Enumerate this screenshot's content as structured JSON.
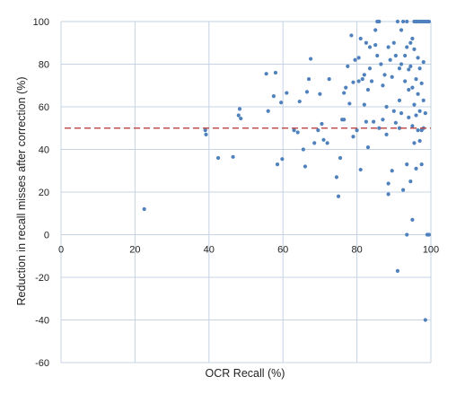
{
  "chart_data": {
    "type": "scatter",
    "title": "",
    "xlabel": "OCR Recall (%)",
    "ylabel": "Reduction in recall misses  after correction (%)",
    "xlim": [
      0,
      100
    ],
    "ylim": [
      -60,
      100
    ],
    "x_ticks": [
      0,
      20,
      40,
      60,
      80,
      100
    ],
    "y_ticks": [
      -60,
      -40,
      -20,
      0,
      20,
      40,
      60,
      80,
      100
    ],
    "grid": true,
    "legend": "none",
    "colors": {
      "points": "#4f81bd",
      "reference_line": "#c0504d",
      "grid": "#c5d3e3"
    },
    "reference_line": {
      "y": 50,
      "style": "dashed"
    },
    "series": [
      {
        "points": [
          [
            22.5,
            12
          ],
          [
            39,
            49
          ],
          [
            39.2,
            47
          ],
          [
            42.5,
            36
          ],
          [
            46.5,
            36.5
          ],
          [
            48,
            56
          ],
          [
            48.3,
            59
          ],
          [
            48.6,
            54.5
          ],
          [
            55.5,
            75.5
          ],
          [
            56,
            58
          ],
          [
            57.5,
            65
          ],
          [
            58,
            76
          ],
          [
            58.5,
            33
          ],
          [
            59.5,
            62
          ],
          [
            59.8,
            35.5
          ],
          [
            61,
            66.5
          ],
          [
            63,
            49
          ],
          [
            64,
            48
          ],
          [
            64.5,
            62.5
          ],
          [
            65.5,
            40
          ],
          [
            66,
            32
          ],
          [
            66.5,
            67
          ],
          [
            67,
            73
          ],
          [
            67.5,
            82.5
          ],
          [
            68.5,
            43
          ],
          [
            69.5,
            49
          ],
          [
            70,
            66
          ],
          [
            70.5,
            52
          ],
          [
            71,
            44.5
          ],
          [
            72,
            43
          ],
          [
            72.5,
            73
          ],
          [
            74.5,
            27
          ],
          [
            75,
            18
          ],
          [
            75.5,
            36
          ],
          [
            76,
            54
          ],
          [
            76.5,
            54
          ],
          [
            76.5,
            66.5
          ],
          [
            77,
            69
          ],
          [
            77.5,
            79
          ],
          [
            78,
            61.5
          ],
          [
            78.5,
            93.5
          ],
          [
            79,
            46
          ],
          [
            79,
            71.5
          ],
          [
            79.5,
            82
          ],
          [
            80,
            49
          ],
          [
            80.5,
            72
          ],
          [
            80.5,
            83
          ],
          [
            81,
            30.5
          ],
          [
            81,
            92
          ],
          [
            81.5,
            73
          ],
          [
            82,
            75
          ],
          [
            82,
            61
          ],
          [
            82.5,
            90
          ],
          [
            82.5,
            53
          ],
          [
            83,
            41
          ],
          [
            83,
            68
          ],
          [
            83.5,
            78
          ],
          [
            83.5,
            88
          ],
          [
            84,
            72
          ],
          [
            84.5,
            53
          ],
          [
            85,
            89
          ],
          [
            85,
            96
          ],
          [
            85.5,
            100
          ],
          [
            85.5,
            84
          ],
          [
            86,
            100
          ],
          [
            86,
            50
          ],
          [
            86.5,
            80
          ],
          [
            87,
            70
          ],
          [
            87,
            54
          ],
          [
            87.5,
            75
          ],
          [
            88,
            60
          ],
          [
            88,
            47
          ],
          [
            88.5,
            88
          ],
          [
            88.5,
            24
          ],
          [
            88.5,
            19
          ],
          [
            89,
            82
          ],
          [
            89.5,
            74
          ],
          [
            89.5,
            30
          ],
          [
            90,
            90
          ],
          [
            90,
            58
          ],
          [
            90.5,
            84
          ],
          [
            90.5,
            52.5
          ],
          [
            91,
            100
          ],
          [
            91,
            -17
          ],
          [
            91.5,
            78
          ],
          [
            91.5,
            63
          ],
          [
            91.5,
            50
          ],
          [
            92,
            96
          ],
          [
            92,
            80
          ],
          [
            92,
            57
          ],
          [
            92.5,
            100
          ],
          [
            92.5,
            21
          ],
          [
            93,
            84
          ],
          [
            93,
            72
          ],
          [
            93.5,
            100
          ],
          [
            93.5,
            88
          ],
          [
            93.5,
            33
          ],
          [
            93.5,
            0
          ],
          [
            94,
            77.5
          ],
          [
            94,
            68
          ],
          [
            94,
            55
          ],
          [
            94.5,
            90
          ],
          [
            94.5,
            79
          ],
          [
            94.5,
            25
          ],
          [
            95,
            92
          ],
          [
            95,
            69
          ],
          [
            95,
            51
          ],
          [
            95,
            7
          ],
          [
            95.5,
            100
          ],
          [
            95.5,
            87
          ],
          [
            95.5,
            61
          ],
          [
            95.5,
            43
          ],
          [
            96,
            100
          ],
          [
            96,
            73
          ],
          [
            96,
            56
          ],
          [
            96,
            31
          ],
          [
            96.5,
            100
          ],
          [
            96.5,
            83
          ],
          [
            96.5,
            66
          ],
          [
            96.5,
            49
          ],
          [
            97,
            100
          ],
          [
            97,
            78
          ],
          [
            97,
            58
          ],
          [
            97,
            44
          ],
          [
            97.5,
            100
          ],
          [
            97.5,
            71
          ],
          [
            97.5,
            49
          ],
          [
            97.5,
            33
          ],
          [
            98,
            100
          ],
          [
            98,
            81
          ],
          [
            98,
            63
          ],
          [
            98,
            50
          ],
          [
            98.5,
            100
          ],
          [
            98.5,
            57
          ],
          [
            98.5,
            -40
          ],
          [
            99,
            100
          ],
          [
            99,
            0
          ],
          [
            99.5,
            100
          ],
          [
            99.5,
            0
          ]
        ]
      }
    ]
  }
}
